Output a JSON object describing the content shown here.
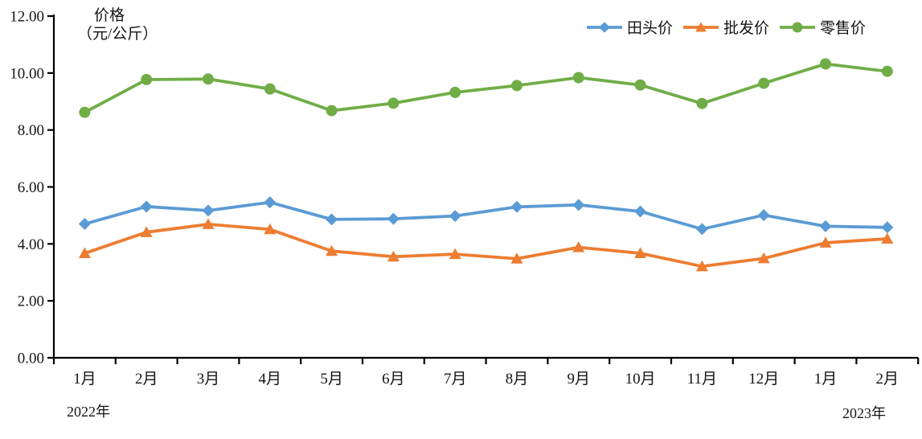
{
  "colors": {
    "axis": "#000000",
    "text": "#141418",
    "background": "#ffffff",
    "field_price_blue": "#5B9BD5",
    "wholesale_orange": "#ED7D31",
    "retail_green": "#70AD47"
  },
  "axis_title": {
    "line1": "价格",
    "line2": "（元/公斤）"
  },
  "x_axis": {
    "year_left": "2022年",
    "year_right": "2023年"
  },
  "chart_data": {
    "type": "line",
    "title": "",
    "xlabel": "",
    "ylabel": "价格（元/公斤）",
    "ylim": [
      0,
      12
    ],
    "yticks": [
      0,
      2,
      4,
      6,
      8,
      10,
      12
    ],
    "ytick_decimals": 2,
    "grid": false,
    "legend_position": "top-right",
    "categories": [
      "1月",
      "2月",
      "3月",
      "4月",
      "5月",
      "6月",
      "7月",
      "8月",
      "9月",
      "10月",
      "11月",
      "12月",
      "1月",
      "2月"
    ],
    "year_labels": [
      {
        "category_index": 0,
        "label": "2022年"
      },
      {
        "category_index": 13,
        "label": "2023年"
      }
    ],
    "series": [
      {
        "name": "田头价",
        "slug": "field-price",
        "color": "#5B9BD5",
        "marker": "diamond",
        "values": [
          4.7,
          5.31,
          5.17,
          5.46,
          4.86,
          4.88,
          4.98,
          5.3,
          5.37,
          5.14,
          4.52,
          5.01,
          4.62,
          4.58
        ]
      },
      {
        "name": "批发价",
        "slug": "wholesale-price",
        "color": "#ED7D31",
        "marker": "triangle",
        "values": [
          3.67,
          4.41,
          4.69,
          4.51,
          3.75,
          3.55,
          3.64,
          3.48,
          3.88,
          3.67,
          3.21,
          3.49,
          4.04,
          4.18
        ]
      },
      {
        "name": "零售价",
        "slug": "retail-price",
        "color": "#70AD47",
        "marker": "circle",
        "values": [
          8.62,
          9.77,
          9.79,
          9.44,
          8.68,
          8.94,
          9.32,
          9.56,
          9.84,
          9.58,
          8.93,
          9.64,
          10.32,
          10.06
        ]
      }
    ]
  }
}
